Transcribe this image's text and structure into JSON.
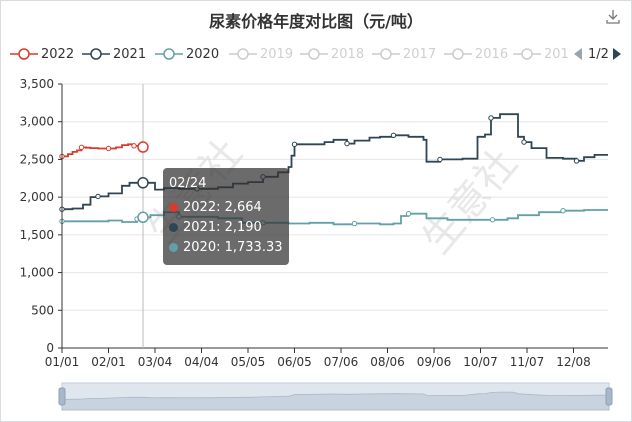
{
  "title": "尿素价格年度对比图（元/吨）",
  "legend": {
    "items": [
      {
        "label": "2022",
        "color": "#d93a2b",
        "active": true
      },
      {
        "label": "2021",
        "color": "#2f4554",
        "active": true
      },
      {
        "label": "2020",
        "color": "#61a0a8",
        "active": true
      },
      {
        "label": "2019",
        "color": "#cccccc",
        "active": false
      },
      {
        "label": "2018",
        "color": "#cccccc",
        "active": false
      },
      {
        "label": "2017",
        "color": "#cccccc",
        "active": false
      },
      {
        "label": "2016",
        "color": "#cccccc",
        "active": false
      },
      {
        "label": "201",
        "color": "#cccccc",
        "active": false
      }
    ],
    "page_label": "1/2"
  },
  "tooltip": {
    "date": "02/24",
    "rows": [
      {
        "text": "2022: 2,664",
        "color": "#d93a2b"
      },
      {
        "text": "2021: 2,190",
        "color": "#2f4554"
      },
      {
        "text": "2020: 1,733.33",
        "color": "#61a0a8"
      }
    ]
  },
  "watermark": "生意社",
  "chart_data": {
    "type": "line",
    "title": "尿素价格年度对比图（元/吨）",
    "xlabel": "",
    "ylabel": "",
    "x_axis": "day of year",
    "x_ticks": [
      "01/01",
      "02/01",
      "03/04",
      "04/04",
      "05/05",
      "06/05",
      "07/06",
      "08/06",
      "09/06",
      "10/07",
      "11/07",
      "12/08"
    ],
    "y_ticks": [
      "0",
      "500",
      "1,000",
      "1,500",
      "2,000",
      "2,500",
      "3,000",
      "3,500"
    ],
    "ylim": [
      0,
      3500
    ],
    "grid": true,
    "legend_position": "top-left",
    "highlight_date": "02/24",
    "series": [
      {
        "name": "2022",
        "color": "#d93a2b",
        "points": [
          [
            "01/01",
            2540
          ],
          [
            "01/05",
            2570
          ],
          [
            "01/08",
            2600
          ],
          [
            "01/11",
            2620
          ],
          [
            "01/14",
            2660
          ],
          [
            "01/17",
            2655
          ],
          [
            "01/20",
            2650
          ],
          [
            "01/25",
            2645
          ],
          [
            "02/01",
            2645
          ],
          [
            "02/06",
            2660
          ],
          [
            "02/10",
            2690
          ],
          [
            "02/14",
            2700
          ],
          [
            "02/18",
            2680
          ],
          [
            "02/21",
            2670
          ],
          [
            "02/24",
            2664
          ]
        ]
      },
      {
        "name": "2021",
        "color": "#2f4554",
        "points": [
          [
            "01/01",
            1840
          ],
          [
            "01/08",
            1850
          ],
          [
            "01/15",
            1900
          ],
          [
            "01/20",
            2000
          ],
          [
            "01/25",
            2010
          ],
          [
            "02/01",
            2050
          ],
          [
            "02/10",
            2150
          ],
          [
            "02/15",
            2190
          ],
          [
            "02/24",
            2190
          ],
          [
            "03/04",
            2100
          ],
          [
            "03/10",
            2120
          ],
          [
            "03/20",
            2110
          ],
          [
            "04/01",
            2110
          ],
          [
            "04/15",
            2130
          ],
          [
            "04/25",
            2180
          ],
          [
            "05/05",
            2200
          ],
          [
            "05/15",
            2270
          ],
          [
            "05/25",
            2330
          ],
          [
            "06/01",
            2400
          ],
          [
            "06/03",
            2550
          ],
          [
            "06/05",
            2700
          ],
          [
            "06/15",
            2700
          ],
          [
            "06/25",
            2730
          ],
          [
            "07/01",
            2760
          ],
          [
            "07/10",
            2710
          ],
          [
            "07/15",
            2750
          ],
          [
            "07/25",
            2790
          ],
          [
            "08/01",
            2800
          ],
          [
            "08/10",
            2820
          ],
          [
            "08/20",
            2800
          ],
          [
            "08/30",
            2760
          ],
          [
            "09/01",
            2470
          ],
          [
            "09/10",
            2500
          ],
          [
            "09/25",
            2510
          ],
          [
            "10/05",
            2800
          ],
          [
            "10/10",
            2830
          ],
          [
            "10/14",
            3050
          ],
          [
            "10/20",
            3100
          ],
          [
            "10/28",
            3100
          ],
          [
            "11/01",
            2800
          ],
          [
            "11/05",
            2730
          ],
          [
            "11/10",
            2650
          ],
          [
            "11/20",
            2520
          ],
          [
            "12/01",
            2510
          ],
          [
            "12/10",
            2480
          ],
          [
            "12/15",
            2530
          ],
          [
            "12/22",
            2560
          ],
          [
            "12/31",
            2560
          ]
        ]
      },
      {
        "name": "2020",
        "color": "#61a0a8",
        "points": [
          [
            "01/01",
            1680
          ],
          [
            "01/15",
            1680
          ],
          [
            "02/01",
            1690
          ],
          [
            "02/10",
            1670
          ],
          [
            "02/20",
            1710
          ],
          [
            "02/24",
            1733.33
          ],
          [
            "03/01",
            1760
          ],
          [
            "03/10",
            1800
          ],
          [
            "03/20",
            1740
          ],
          [
            "04/01",
            1740
          ],
          [
            "04/15",
            1720
          ],
          [
            "05/01",
            1660
          ],
          [
            "05/15",
            1660
          ],
          [
            "06/01",
            1650
          ],
          [
            "06/15",
            1660
          ],
          [
            "07/01",
            1640
          ],
          [
            "07/15",
            1650
          ],
          [
            "08/01",
            1640
          ],
          [
            "08/10",
            1650
          ],
          [
            "08/15",
            1750
          ],
          [
            "08/20",
            1780
          ],
          [
            "09/01",
            1720
          ],
          [
            "09/15",
            1700
          ],
          [
            "10/01",
            1700
          ],
          [
            "10/15",
            1700
          ],
          [
            "10/25",
            1720
          ],
          [
            "11/01",
            1760
          ],
          [
            "11/15",
            1800
          ],
          [
            "12/01",
            1820
          ],
          [
            "12/15",
            1830
          ],
          [
            "12/31",
            1830
          ]
        ]
      }
    ]
  }
}
